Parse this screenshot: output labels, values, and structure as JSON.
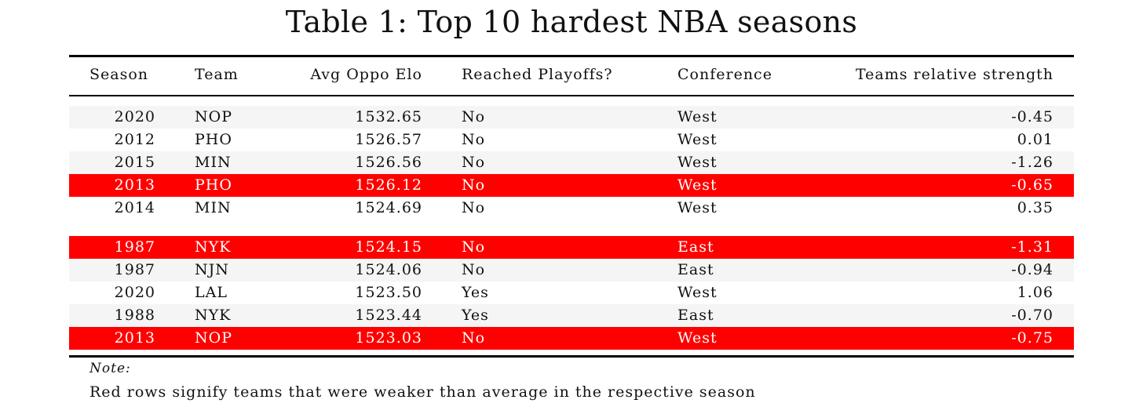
{
  "title": "Table 1: Top 10 hardest NBA seasons",
  "columns": {
    "season": "Season",
    "team": "Team",
    "elo": "Avg Oppo Elo",
    "playoffs": "Reached Playoffs?",
    "conference": "Conference",
    "strength": "Teams relative strength"
  },
  "colors": {
    "highlight": "#ff0000",
    "stripe": "#f5f5f5"
  },
  "rows": [
    {
      "season": "2020",
      "team": "NOP",
      "elo": "1532.65",
      "playoffs": "No",
      "conference": "West",
      "strength": "-0.45",
      "highlight": false
    },
    {
      "season": "2012",
      "team": "PHO",
      "elo": "1526.57",
      "playoffs": "No",
      "conference": "West",
      "strength": "0.01",
      "highlight": false
    },
    {
      "season": "2015",
      "team": "MIN",
      "elo": "1526.56",
      "playoffs": "No",
      "conference": "West",
      "strength": "-1.26",
      "highlight": false
    },
    {
      "season": "2013",
      "team": "PHO",
      "elo": "1526.12",
      "playoffs": "No",
      "conference": "West",
      "strength": "-0.65",
      "highlight": true
    },
    {
      "season": "2014",
      "team": "MIN",
      "elo": "1524.69",
      "playoffs": "No",
      "conference": "West",
      "strength": "0.35",
      "highlight": false
    },
    {
      "season": "1987",
      "team": "NYK",
      "elo": "1524.15",
      "playoffs": "No",
      "conference": "East",
      "strength": "-1.31",
      "highlight": true
    },
    {
      "season": "1987",
      "team": "NJN",
      "elo": "1524.06",
      "playoffs": "No",
      "conference": "East",
      "strength": "-0.94",
      "highlight": false
    },
    {
      "season": "2020",
      "team": "LAL",
      "elo": "1523.50",
      "playoffs": "Yes",
      "conference": "West",
      "strength": "1.06",
      "highlight": false
    },
    {
      "season": "1988",
      "team": "NYK",
      "elo": "1523.44",
      "playoffs": "Yes",
      "conference": "East",
      "strength": "-0.70",
      "highlight": false
    },
    {
      "season": "2013",
      "team": "NOP",
      "elo": "1523.03",
      "playoffs": "No",
      "conference": "West",
      "strength": "-0.75",
      "highlight": true
    }
  ],
  "note": {
    "label": "Note:",
    "text": "Red rows signify teams that were weaker than average in the respective season"
  }
}
